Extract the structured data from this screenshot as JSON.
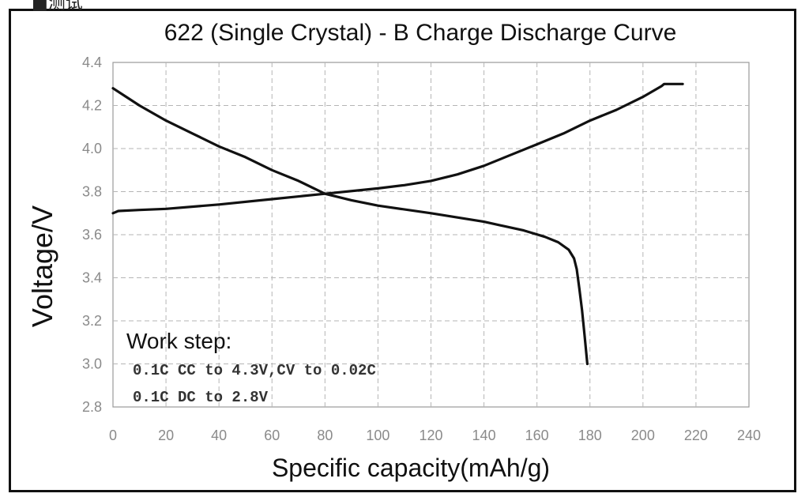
{
  "top_fragment": "■测试",
  "chart_data": {
    "type": "line",
    "title": "622 (Single Crystal) - B Charge Discharge Curve",
    "xlabel": "Specific capacity(mAh/g)",
    "ylabel": "Voltage/V",
    "xlim": [
      0,
      240
    ],
    "ylim": [
      2.8,
      4.4
    ],
    "x_ticks": [
      "0",
      "20",
      "40",
      "60",
      "80",
      "100",
      "120",
      "140",
      "160",
      "180",
      "200",
      "220",
      "240"
    ],
    "y_ticks": [
      "2.8",
      "3.0",
      "3.2",
      "3.4",
      "3.6",
      "3.8",
      "4.0",
      "4.2",
      "4.4"
    ],
    "grid": true,
    "grid_style": "dashed",
    "series": [
      {
        "points": [
          [
            0,
            3.7
          ],
          [
            2,
            3.71
          ],
          [
            10,
            3.715
          ],
          [
            20,
            3.72
          ],
          [
            40,
            3.74
          ],
          [
            60,
            3.765
          ],
          [
            80,
            3.79
          ],
          [
            100,
            3.815
          ],
          [
            110,
            3.83
          ],
          [
            120,
            3.85
          ],
          [
            130,
            3.88
          ],
          [
            140,
            3.92
          ],
          [
            150,
            3.97
          ],
          [
            160,
            4.02
          ],
          [
            170,
            4.07
          ],
          [
            180,
            4.13
          ],
          [
            190,
            4.18
          ],
          [
            200,
            4.24
          ],
          [
            207,
            4.29
          ],
          [
            208,
            4.3
          ],
          [
            215,
            4.3
          ]
        ]
      },
      {
        "points": [
          [
            0,
            4.28
          ],
          [
            5,
            4.24
          ],
          [
            10,
            4.2
          ],
          [
            20,
            4.13
          ],
          [
            30,
            4.07
          ],
          [
            40,
            4.01
          ],
          [
            50,
            3.96
          ],
          [
            60,
            3.9
          ],
          [
            70,
            3.85
          ],
          [
            80,
            3.79
          ],
          [
            90,
            3.76
          ],
          [
            100,
            3.735
          ],
          [
            120,
            3.7
          ],
          [
            140,
            3.66
          ],
          [
            155,
            3.62
          ],
          [
            163,
            3.59
          ],
          [
            168,
            3.565
          ],
          [
            172,
            3.53
          ],
          [
            174,
            3.49
          ],
          [
            175,
            3.44
          ],
          [
            176,
            3.35
          ],
          [
            177,
            3.25
          ],
          [
            178,
            3.13
          ],
          [
            179,
            3.0
          ]
        ]
      }
    ],
    "annotation": {
      "title": "Work step:",
      "lines": [
        "0.1C CC to 4.3V,CV to 0.02C",
        "0.1C DC to 2.8V"
      ]
    }
  }
}
